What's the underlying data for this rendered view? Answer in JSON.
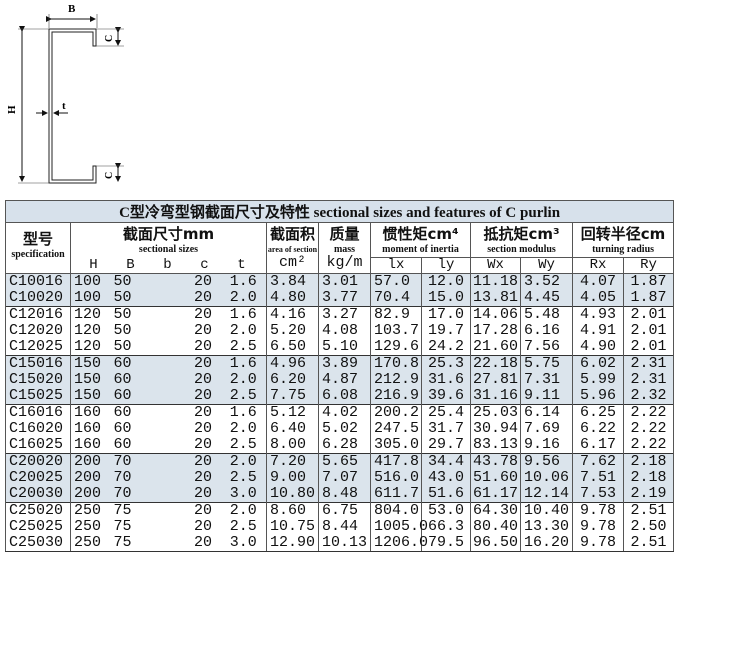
{
  "diagram": {
    "labels": {
      "B": "B",
      "C_top": "C",
      "C_bottom": "C",
      "H": "H",
      "t": "t"
    }
  },
  "table": {
    "title": "C型冷弯型钢截面尺寸及特性   sectional sizes and features of C purlin",
    "headers": {
      "spec": {
        "cn": "型号",
        "en": "specification"
      },
      "sizes": {
        "cn": "截面尺寸mm",
        "en": "sectional sizes",
        "sub": [
          "H",
          "B",
          "b",
          "c",
          "t"
        ]
      },
      "area": {
        "cn": "截面积",
        "en": "area of section",
        "unit": "cm²"
      },
      "mass": {
        "cn": "质量",
        "en": "mass",
        "unit": "kg/m"
      },
      "inertia": {
        "cn": "惯性矩cm⁴",
        "en": "moment of inertia",
        "sub": [
          "lx",
          "ly"
        ]
      },
      "modulus": {
        "cn": "抵抗矩cm³",
        "en": "section modulus",
        "sub": [
          "Wx",
          "Wy"
        ]
      },
      "radius": {
        "cn": "回转半径cm",
        "en": "turning radius",
        "sub": [
          "Rx",
          "Ry"
        ]
      }
    },
    "shade_color": "#dbe4ec",
    "groups": [
      {
        "shaded": true,
        "rows": [
          [
            "C10016",
            "100",
            "50",
            "",
            "20",
            "1.6",
            "3.84",
            "3.01",
            "57.0",
            "12.0",
            "11.18",
            "3.52",
            "4.07",
            "1.87"
          ],
          [
            "C10020",
            "100",
            "50",
            "",
            "20",
            "2.0",
            "4.80",
            "3.77",
            "70.4",
            "15.0",
            "13.81",
            "4.45",
            "4.05",
            "1.87"
          ]
        ]
      },
      {
        "shaded": false,
        "rows": [
          [
            "C12016",
            "120",
            "50",
            "",
            "20",
            "1.6",
            "4.16",
            "3.27",
            "82.9",
            "17.0",
            "14.06",
            "5.48",
            "4.93",
            "2.01"
          ],
          [
            "C12020",
            "120",
            "50",
            "",
            "20",
            "2.0",
            "5.20",
            "4.08",
            "103.7",
            "19.7",
            "17.28",
            "6.16",
            "4.91",
            "2.01"
          ],
          [
            "C12025",
            "120",
            "50",
            "",
            "20",
            "2.5",
            "6.50",
            "5.10",
            "129.6",
            "24.2",
            "21.60",
            "7.56",
            "4.90",
            "2.01"
          ]
        ]
      },
      {
        "shaded": true,
        "rows": [
          [
            "C15016",
            "150",
            "60",
            "",
            "20",
            "1.6",
            "4.96",
            "3.89",
            "170.8",
            "25.3",
            "22.18",
            "5.75",
            "6.02",
            "2.31"
          ],
          [
            "C15020",
            "150",
            "60",
            "",
            "20",
            "2.0",
            "6.20",
            "4.87",
            "212.9",
            "31.6",
            "27.81",
            "7.31",
            "5.99",
            "2.31"
          ],
          [
            "C15025",
            "150",
            "60",
            "",
            "20",
            "2.5",
            "7.75",
            "6.08",
            "216.9",
            "39.6",
            "31.16",
            "9.11",
            "5.96",
            "2.32"
          ]
        ]
      },
      {
        "shaded": false,
        "rows": [
          [
            "C16016",
            "160",
            "60",
            "",
            "20",
            "1.6",
            "5.12",
            "4.02",
            "200.2",
            "25.4",
            "25.03",
            "6.14",
            "6.25",
            "2.22"
          ],
          [
            "C16020",
            "160",
            "60",
            "",
            "20",
            "2.0",
            "6.40",
            "5.02",
            "247.5",
            "31.7",
            "30.94",
            "7.69",
            "6.22",
            "2.22"
          ],
          [
            "C16025",
            "160",
            "60",
            "",
            "20",
            "2.5",
            "8.00",
            "6.28",
            "305.0",
            "29.7",
            "83.13",
            "9.16",
            "6.17",
            "2.22"
          ]
        ]
      },
      {
        "shaded": true,
        "rows": [
          [
            "C20020",
            "200",
            "70",
            "",
            "20",
            "2.0",
            "7.20",
            "5.65",
            "417.8",
            "34.4",
            "43.78",
            "9.56",
            "7.62",
            "2.18"
          ],
          [
            "C20025",
            "200",
            "70",
            "",
            "20",
            "2.5",
            "9.00",
            "7.07",
            "516.0",
            "43.0",
            "51.60",
            "10.06",
            "7.51",
            "2.18"
          ],
          [
            "C20030",
            "200",
            "70",
            "",
            "20",
            "3.0",
            "10.80",
            "8.48",
            "611.7",
            "51.6",
            "61.17",
            "12.14",
            "7.53",
            "2.19"
          ]
        ]
      },
      {
        "shaded": false,
        "rows": [
          [
            "C25020",
            "250",
            "75",
            "",
            "20",
            "2.0",
            "8.60",
            "6.75",
            "804.0",
            "53.0",
            "64.30",
            "10.40",
            "9.78",
            "2.51"
          ],
          [
            "C25025",
            "250",
            "75",
            "",
            "20",
            "2.5",
            "10.75",
            "8.44",
            "1005.0",
            "66.3",
            "80.40",
            "13.30",
            "9.78",
            "2.50"
          ],
          [
            "C25030",
            "250",
            "75",
            "",
            "20",
            "3.0",
            "12.90",
            "10.13",
            "1206.0",
            "79.5",
            "96.50",
            "16.20",
            "9.78",
            "2.51"
          ]
        ]
      }
    ]
  }
}
